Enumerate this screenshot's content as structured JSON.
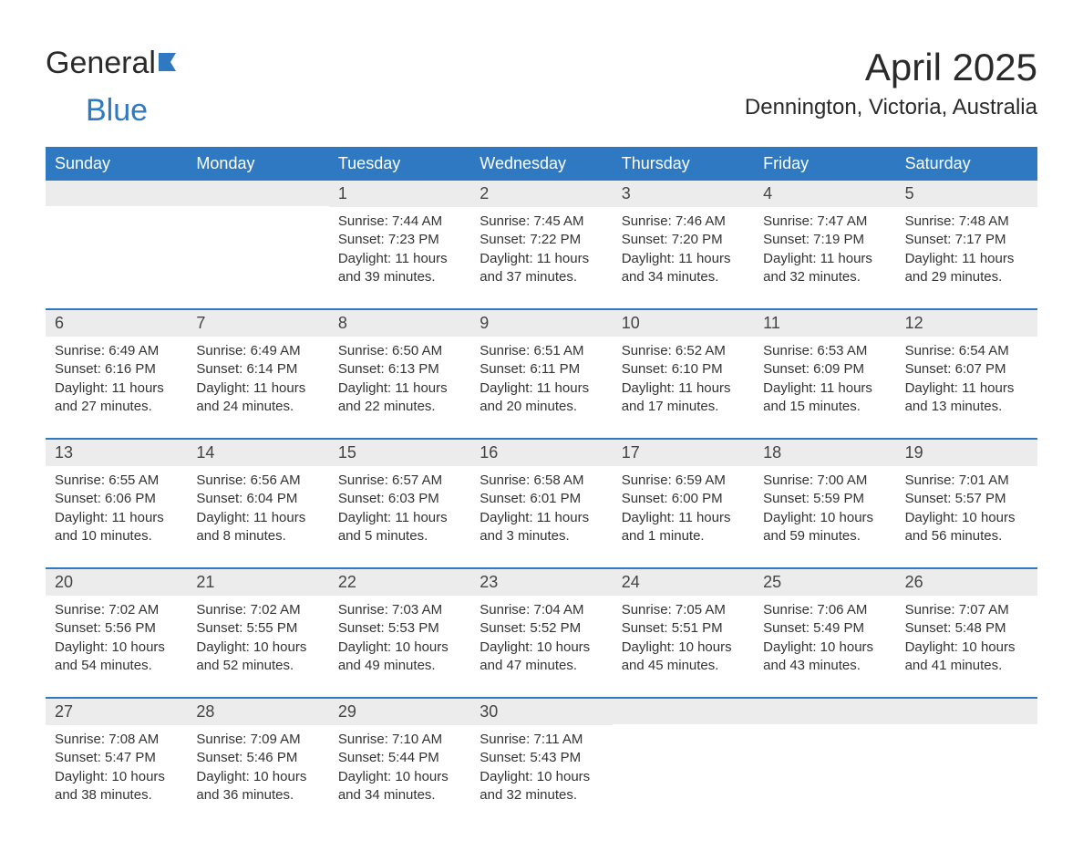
{
  "logo": {
    "part1": "General",
    "part2": "Blue"
  },
  "title": {
    "month": "April 2025",
    "location": "Dennington, Victoria, Australia"
  },
  "colors": {
    "header_bg": "#2f79c2",
    "header_text": "#ffffff",
    "daynum_bg": "#ececec",
    "week_divider": "#2f79c2",
    "body_text": "#333333",
    "background": "#ffffff"
  },
  "typography": {
    "title_fontsize": 42,
    "location_fontsize": 24,
    "header_fontsize": 18,
    "daynum_fontsize": 18,
    "body_fontsize": 15
  },
  "weekdays": [
    "Sunday",
    "Monday",
    "Tuesday",
    "Wednesday",
    "Thursday",
    "Friday",
    "Saturday"
  ],
  "weeks": [
    [
      {
        "day": "",
        "lines": [
          "",
          "",
          "",
          ""
        ]
      },
      {
        "day": "",
        "lines": [
          "",
          "",
          "",
          ""
        ]
      },
      {
        "day": "1",
        "lines": [
          "Sunrise: 7:44 AM",
          "Sunset: 7:23 PM",
          "Daylight: 11 hours",
          "and 39 minutes."
        ]
      },
      {
        "day": "2",
        "lines": [
          "Sunrise: 7:45 AM",
          "Sunset: 7:22 PM",
          "Daylight: 11 hours",
          "and 37 minutes."
        ]
      },
      {
        "day": "3",
        "lines": [
          "Sunrise: 7:46 AM",
          "Sunset: 7:20 PM",
          "Daylight: 11 hours",
          "and 34 minutes."
        ]
      },
      {
        "day": "4",
        "lines": [
          "Sunrise: 7:47 AM",
          "Sunset: 7:19 PM",
          "Daylight: 11 hours",
          "and 32 minutes."
        ]
      },
      {
        "day": "5",
        "lines": [
          "Sunrise: 7:48 AM",
          "Sunset: 7:17 PM",
          "Daylight: 11 hours",
          "and 29 minutes."
        ]
      }
    ],
    [
      {
        "day": "6",
        "lines": [
          "Sunrise: 6:49 AM",
          "Sunset: 6:16 PM",
          "Daylight: 11 hours",
          "and 27 minutes."
        ]
      },
      {
        "day": "7",
        "lines": [
          "Sunrise: 6:49 AM",
          "Sunset: 6:14 PM",
          "Daylight: 11 hours",
          "and 24 minutes."
        ]
      },
      {
        "day": "8",
        "lines": [
          "Sunrise: 6:50 AM",
          "Sunset: 6:13 PM",
          "Daylight: 11 hours",
          "and 22 minutes."
        ]
      },
      {
        "day": "9",
        "lines": [
          "Sunrise: 6:51 AM",
          "Sunset: 6:11 PM",
          "Daylight: 11 hours",
          "and 20 minutes."
        ]
      },
      {
        "day": "10",
        "lines": [
          "Sunrise: 6:52 AM",
          "Sunset: 6:10 PM",
          "Daylight: 11 hours",
          "and 17 minutes."
        ]
      },
      {
        "day": "11",
        "lines": [
          "Sunrise: 6:53 AM",
          "Sunset: 6:09 PM",
          "Daylight: 11 hours",
          "and 15 minutes."
        ]
      },
      {
        "day": "12",
        "lines": [
          "Sunrise: 6:54 AM",
          "Sunset: 6:07 PM",
          "Daylight: 11 hours",
          "and 13 minutes."
        ]
      }
    ],
    [
      {
        "day": "13",
        "lines": [
          "Sunrise: 6:55 AM",
          "Sunset: 6:06 PM",
          "Daylight: 11 hours",
          "and 10 minutes."
        ]
      },
      {
        "day": "14",
        "lines": [
          "Sunrise: 6:56 AM",
          "Sunset: 6:04 PM",
          "Daylight: 11 hours",
          "and 8 minutes."
        ]
      },
      {
        "day": "15",
        "lines": [
          "Sunrise: 6:57 AM",
          "Sunset: 6:03 PM",
          "Daylight: 11 hours",
          "and 5 minutes."
        ]
      },
      {
        "day": "16",
        "lines": [
          "Sunrise: 6:58 AM",
          "Sunset: 6:01 PM",
          "Daylight: 11 hours",
          "and 3 minutes."
        ]
      },
      {
        "day": "17",
        "lines": [
          "Sunrise: 6:59 AM",
          "Sunset: 6:00 PM",
          "Daylight: 11 hours",
          "and 1 minute."
        ]
      },
      {
        "day": "18",
        "lines": [
          "Sunrise: 7:00 AM",
          "Sunset: 5:59 PM",
          "Daylight: 10 hours",
          "and 59 minutes."
        ]
      },
      {
        "day": "19",
        "lines": [
          "Sunrise: 7:01 AM",
          "Sunset: 5:57 PM",
          "Daylight: 10 hours",
          "and 56 minutes."
        ]
      }
    ],
    [
      {
        "day": "20",
        "lines": [
          "Sunrise: 7:02 AM",
          "Sunset: 5:56 PM",
          "Daylight: 10 hours",
          "and 54 minutes."
        ]
      },
      {
        "day": "21",
        "lines": [
          "Sunrise: 7:02 AM",
          "Sunset: 5:55 PM",
          "Daylight: 10 hours",
          "and 52 minutes."
        ]
      },
      {
        "day": "22",
        "lines": [
          "Sunrise: 7:03 AM",
          "Sunset: 5:53 PM",
          "Daylight: 10 hours",
          "and 49 minutes."
        ]
      },
      {
        "day": "23",
        "lines": [
          "Sunrise: 7:04 AM",
          "Sunset: 5:52 PM",
          "Daylight: 10 hours",
          "and 47 minutes."
        ]
      },
      {
        "day": "24",
        "lines": [
          "Sunrise: 7:05 AM",
          "Sunset: 5:51 PM",
          "Daylight: 10 hours",
          "and 45 minutes."
        ]
      },
      {
        "day": "25",
        "lines": [
          "Sunrise: 7:06 AM",
          "Sunset: 5:49 PM",
          "Daylight: 10 hours",
          "and 43 minutes."
        ]
      },
      {
        "day": "26",
        "lines": [
          "Sunrise: 7:07 AM",
          "Sunset: 5:48 PM",
          "Daylight: 10 hours",
          "and 41 minutes."
        ]
      }
    ],
    [
      {
        "day": "27",
        "lines": [
          "Sunrise: 7:08 AM",
          "Sunset: 5:47 PM",
          "Daylight: 10 hours",
          "and 38 minutes."
        ]
      },
      {
        "day": "28",
        "lines": [
          "Sunrise: 7:09 AM",
          "Sunset: 5:46 PM",
          "Daylight: 10 hours",
          "and 36 minutes."
        ]
      },
      {
        "day": "29",
        "lines": [
          "Sunrise: 7:10 AM",
          "Sunset: 5:44 PM",
          "Daylight: 10 hours",
          "and 34 minutes."
        ]
      },
      {
        "day": "30",
        "lines": [
          "Sunrise: 7:11 AM",
          "Sunset: 5:43 PM",
          "Daylight: 10 hours",
          "and 32 minutes."
        ]
      },
      {
        "day": "",
        "lines": [
          "",
          "",
          "",
          ""
        ]
      },
      {
        "day": "",
        "lines": [
          "",
          "",
          "",
          ""
        ]
      },
      {
        "day": "",
        "lines": [
          "",
          "",
          "",
          ""
        ]
      }
    ]
  ]
}
